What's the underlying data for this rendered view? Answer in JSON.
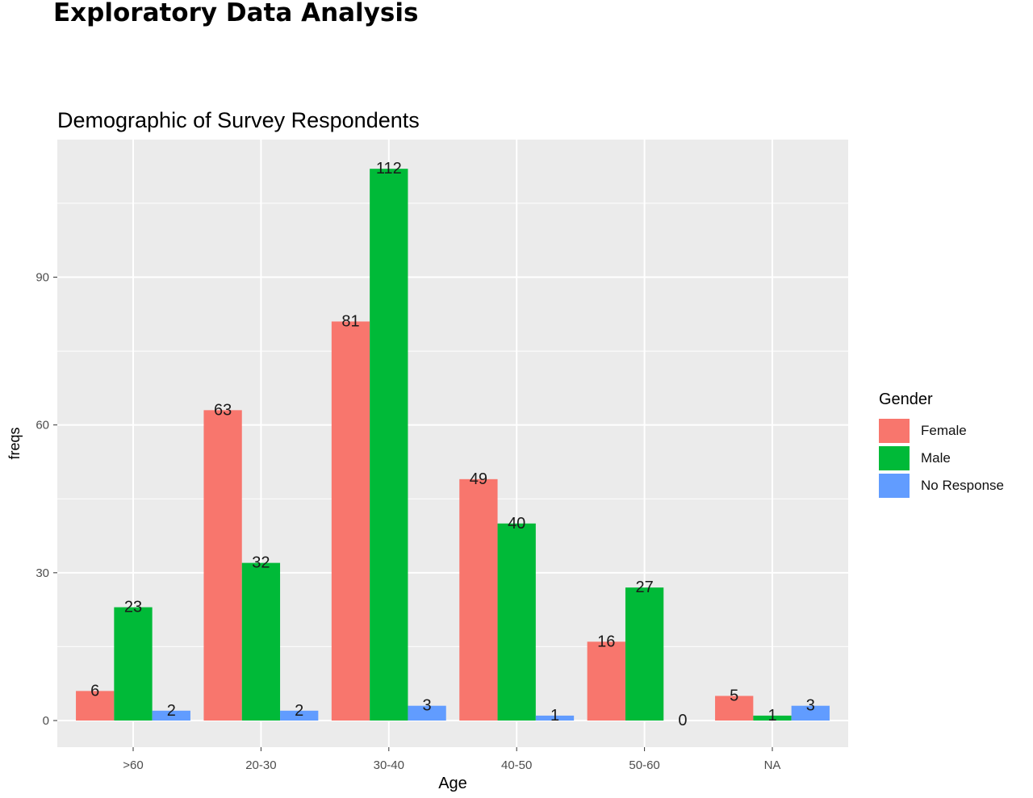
{
  "page": {
    "title": "Exploratory Data Analysis"
  },
  "chart_data": {
    "type": "bar",
    "title": "Demographic of Survey Respondents",
    "xlabel": "Age",
    "ylabel": "freqs",
    "categories": [
      ">60",
      "20-30",
      "30-40",
      "40-50",
      "50-60",
      "NA"
    ],
    "series": [
      {
        "name": "Female",
        "color": "#F8766D",
        "values": [
          6,
          63,
          81,
          49,
          16,
          5
        ]
      },
      {
        "name": "Male",
        "color": "#00BA38",
        "values": [
          23,
          32,
          112,
          40,
          27,
          1
        ]
      },
      {
        "name": "No Response",
        "color": "#619CFF",
        "values": [
          2,
          2,
          3,
          1,
          0,
          3
        ]
      }
    ],
    "yticks": [
      0,
      30,
      60,
      90
    ],
    "ylim": [
      -5,
      118
    ],
    "grid": true,
    "background": "#EBEBEB",
    "legend": {
      "title": "Gender",
      "position": "right"
    }
  }
}
